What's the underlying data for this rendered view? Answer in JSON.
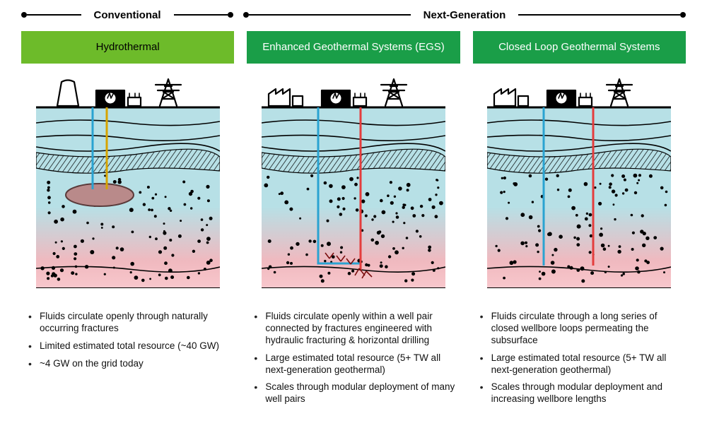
{
  "headers": {
    "conventional": "Conventional",
    "nextgen": "Next-Generation"
  },
  "columns": [
    {
      "title": "Hydrothermal",
      "title_bg": "#6dbb2a",
      "title_color": "#000000",
      "bullets": [
        "Fluids circulate openly through naturally occurring fractures",
        "Limited estimated total resource (~40 GW)",
        "~4 GW on the grid today"
      ],
      "diagram": {
        "kind": "hydrothermal",
        "layers": {
          "sky": "#b7e0e6",
          "mid": "#f0b9bf",
          "deep": "#f8c7cc",
          "hatch": "#000000"
        },
        "well_injection_color": "#2aa3d1",
        "well_production_color": "#e43d3d",
        "reservoir_fill": "#b98a8a",
        "reservoir_stroke": "#5a3a3a"
      }
    },
    {
      "title": "Enhanced Geothermal Systems (EGS)",
      "title_bg": "#1a9e48",
      "title_color": "#ffffff",
      "bullets": [
        "Fluids circulate openly within a well pair connected by fractures engineered with hydraulic fracturing & horizontal drilling",
        "Large estimated total resource (5+ TW all next-generation geothermal)",
        "Scales through modular deployment of many well pairs"
      ],
      "diagram": {
        "kind": "egs",
        "layers": {
          "sky": "#b7e0e6",
          "mid": "#f0b9bf",
          "deep": "#f8c7cc",
          "hatch": "#000000"
        },
        "well_injection_color": "#2aa3d1",
        "well_production_color": "#e43d3d",
        "frac_color": "#7a0d0d"
      }
    },
    {
      "title": "Closed Loop Geothermal Systems",
      "title_bg": "#1a9e48",
      "title_color": "#ffffff",
      "bullets": [
        "Fluids circulate through a long series of closed wellbore loops permeating the subsurface",
        "Large estimated total resource (5+ TW all next-generation geothermal)",
        "Scales through modular deployment and increasing wellbore lengths"
      ],
      "diagram": {
        "kind": "closed",
        "layers": {
          "sky": "#b7e0e6",
          "mid": "#f0b9bf",
          "deep": "#f8c7cc",
          "hatch": "#000000"
        },
        "well_injection_color": "#2aa3d1",
        "well_production_color": "#e43d3d",
        "gradient_mid": "#d78b2e"
      }
    }
  ],
  "surface_icons": {
    "plant_color": "#000000",
    "turbine_color": "#000000",
    "tower_color": "#000000"
  }
}
